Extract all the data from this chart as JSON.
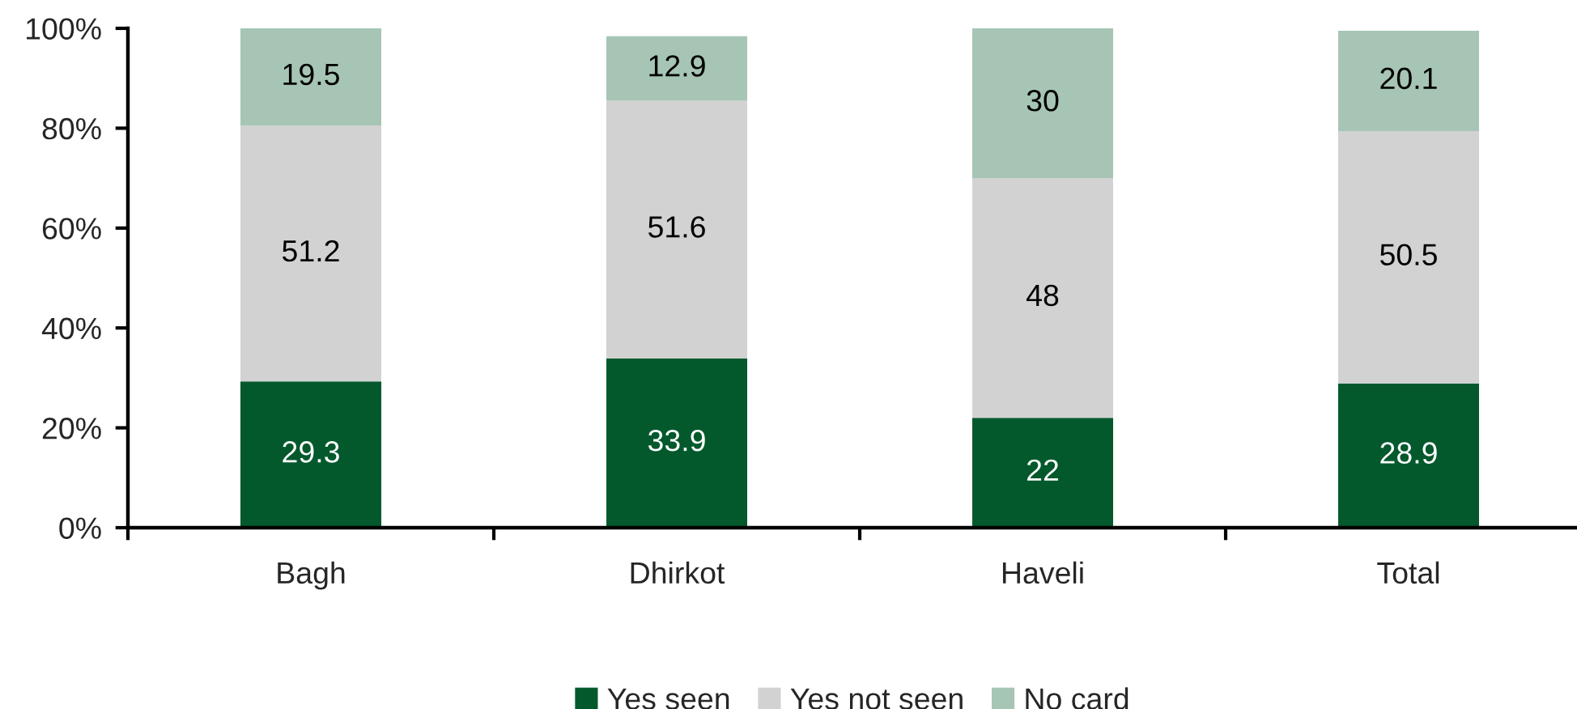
{
  "chart_data": {
    "type": "bar",
    "stacked": true,
    "categories": [
      "Bagh",
      "Dhirkot",
      "Haveli",
      "Total"
    ],
    "series": [
      {
        "name": "Yes seen",
        "color": "#03592c",
        "values": [
          29.3,
          33.9,
          22,
          28.9
        ]
      },
      {
        "name": "Yes not seen",
        "color": "#d2d2d2",
        "values": [
          51.2,
          51.6,
          48,
          50.5
        ]
      },
      {
        "name": "No card",
        "color": "#a7c5b5",
        "values": [
          19.5,
          12.9,
          30,
          20.1
        ]
      }
    ],
    "ylim": [
      0,
      100
    ],
    "yticks": [
      {
        "value": 0,
        "label": "0%"
      },
      {
        "value": 20,
        "label": "20%"
      },
      {
        "value": 40,
        "label": "40%"
      },
      {
        "value": 60,
        "label": "60%"
      },
      {
        "value": 80,
        "label": "80%"
      },
      {
        "value": 100,
        "label": "100%"
      }
    ],
    "data_labels": true,
    "legend": "bottom",
    "grid": false
  }
}
